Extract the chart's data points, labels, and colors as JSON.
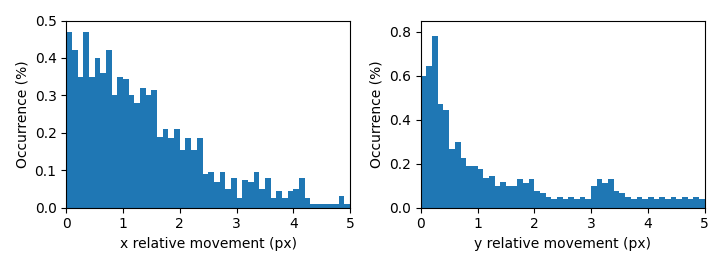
{
  "x_bars": [
    0.47,
    0.42,
    0.35,
    0.47,
    0.35,
    0.4,
    0.36,
    0.42,
    0.3,
    0.35,
    0.345,
    0.3,
    0.31,
    0.28,
    0.32,
    0.3,
    0.3,
    0.31,
    0.24,
    0.21,
    0.185,
    0.21,
    0.185,
    0.21,
    0.155,
    0.185,
    0.155,
    0.185,
    0.155,
    0.18,
    0.09,
    0.095,
    0.07,
    0.095,
    0.05,
    0.08,
    0.025,
    0.045,
    0.025,
    0.045,
    0.05,
    0.08,
    0.025,
    0.045,
    0.025,
    0.045,
    0.025,
    0.01,
    0.03,
    0.01
  ],
  "y_bars": [
    0.6,
    0.645,
    0.78,
    0.47,
    0.445,
    0.265,
    0.3,
    0.225,
    0.19,
    0.19,
    0.175,
    0.135,
    0.145,
    0.1,
    0.115,
    0.1,
    0.1,
    0.13,
    0.11,
    0.13,
    0.075,
    0.065,
    0.05,
    0.04,
    0.05,
    0.04,
    0.05,
    0.04,
    0.05,
    0.04,
    0.05,
    0.04,
    0.05,
    0.04,
    0.05,
    0.04,
    0.05,
    0.04,
    0.05,
    0.04,
    0.05,
    0.04,
    0.05,
    0.04,
    0.05,
    0.04,
    0.05,
    0.04,
    0.05,
    0.04
  ],
  "n_bins": 50,
  "x_min": 0,
  "x_max": 5,
  "bar_color": "#1f77b4",
  "xlabel_left": "x relative movement (px)",
  "xlabel_right": "y relative movement (px)",
  "ylabel": "Occurrence (%)",
  "ylim_left": [
    0,
    0.5
  ],
  "ylim_right": [
    0,
    0.85
  ]
}
